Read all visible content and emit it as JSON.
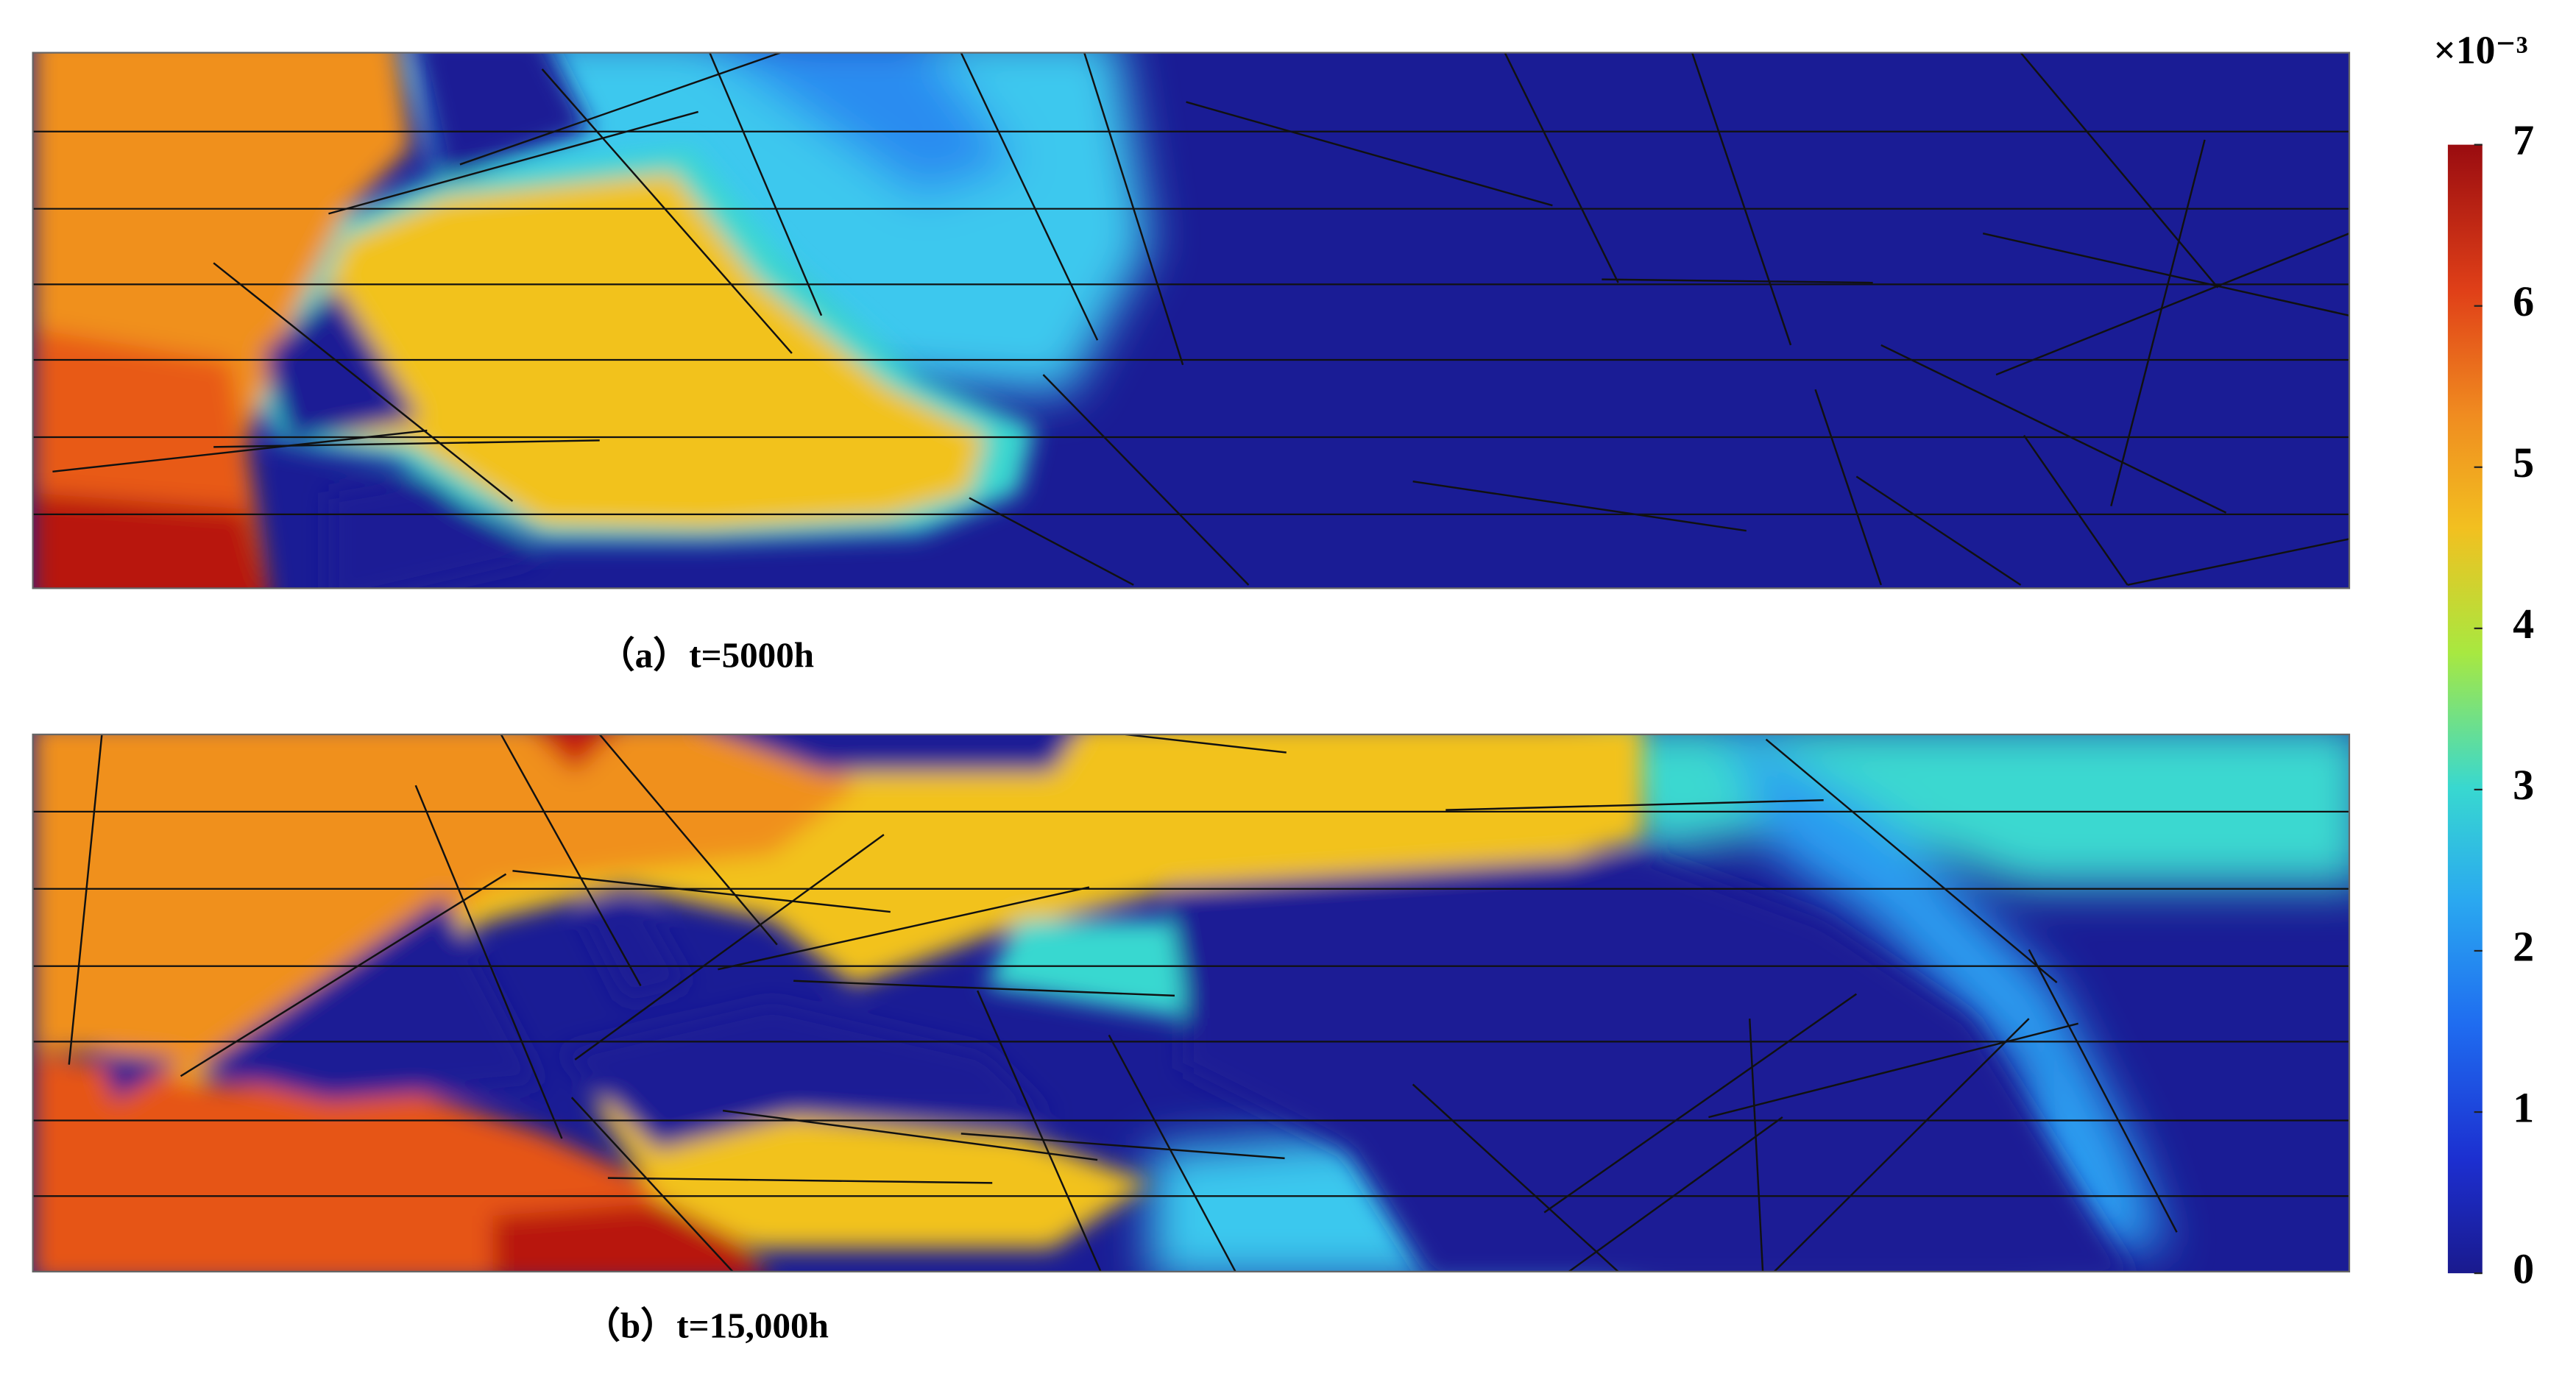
{
  "chart_data": {
    "type": "colorbar",
    "colorbar_label": "×10⁻³",
    "ylim": [
      0,
      7
    ],
    "yticks": [
      0,
      1,
      2,
      3,
      4,
      5,
      6,
      7
    ],
    "panels": [
      {
        "caption": "（a）t=5000h"
      },
      {
        "caption": "（b）t=15,000h"
      }
    ]
  }
}
